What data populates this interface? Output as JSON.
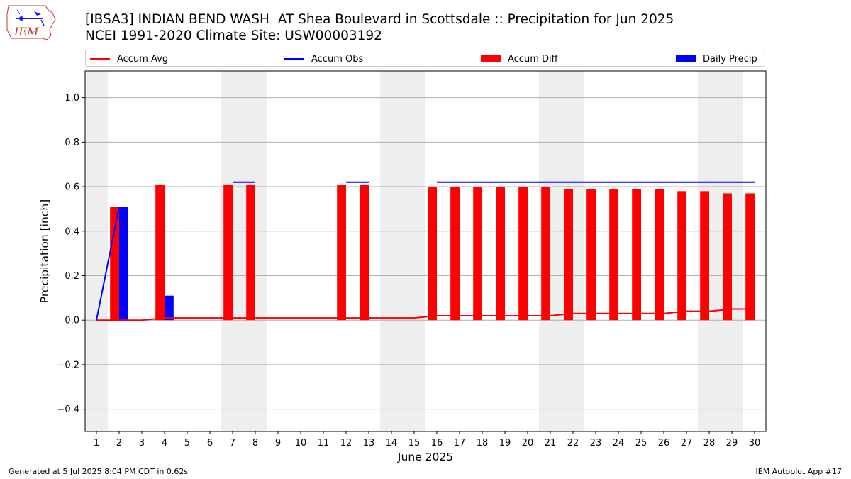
{
  "title_line1": "[IBSA3] INDIAN BEND WASH  AT Shea Boulevard in Scottsdale :: Precipitation for Jun 2025",
  "title_line2": "NCEI 1991-2020 Climate Site: USW00003192",
  "logo_text": "IEM",
  "footer_left": "Generated at 5 Jul 2025 8:04 PM CDT in 0.62s",
  "footer_right": "IEM Autoplot App #17",
  "colors": {
    "avg": "#ff0000",
    "obs": "#0000ff",
    "diff": "#ff0000",
    "daily": "#0000ff",
    "weekend": "#eeeeee",
    "grid": "#b0b0b0"
  },
  "chart_data": {
    "type": "bar",
    "xlabel": "June 2025",
    "ylabel": "Precipitation [inch]",
    "ylim": [
      -0.5,
      1.12
    ],
    "yticks": [
      -0.4,
      -0.2,
      0.0,
      0.2,
      0.4,
      0.6,
      0.8,
      1.0
    ],
    "ytick_labels": [
      "−0.4",
      "−0.2",
      "0.0",
      "0.2",
      "0.4",
      "0.6",
      "0.8",
      "1.0"
    ],
    "grid": "horizontal",
    "legend_placement": "top",
    "days": [
      1,
      2,
      3,
      4,
      5,
      6,
      7,
      8,
      9,
      10,
      11,
      12,
      13,
      14,
      15,
      16,
      17,
      18,
      19,
      20,
      21,
      22,
      23,
      24,
      25,
      26,
      27,
      28,
      29,
      30
    ],
    "weekend_days": [
      1,
      7,
      8,
      14,
      15,
      21,
      22,
      28,
      29
    ],
    "series": [
      {
        "name": "Accum Avg",
        "kind": "line",
        "values": [
          0.0,
          0.0,
          0.0,
          0.01,
          0.01,
          0.01,
          0.01,
          0.01,
          0.01,
          0.01,
          0.01,
          0.01,
          0.01,
          0.01,
          0.01,
          0.02,
          0.02,
          0.02,
          0.02,
          0.02,
          0.02,
          0.03,
          0.03,
          0.03,
          0.03,
          0.03,
          0.04,
          0.04,
          0.05,
          0.05
        ]
      },
      {
        "name": "Accum Obs",
        "kind": "line",
        "values": [
          0.0,
          0.51,
          null,
          null,
          null,
          null,
          0.62,
          0.62,
          null,
          null,
          null,
          0.62,
          0.62,
          null,
          null,
          0.62,
          0.62,
          0.62,
          0.62,
          0.62,
          0.62,
          0.62,
          0.62,
          0.62,
          0.62,
          0.62,
          0.62,
          0.62,
          0.62,
          0.62
        ]
      },
      {
        "name": "Accum Diff",
        "kind": "bar",
        "values": [
          null,
          0.51,
          null,
          0.61,
          null,
          null,
          0.61,
          0.61,
          null,
          null,
          null,
          0.61,
          0.61,
          null,
          null,
          0.6,
          0.6,
          0.6,
          0.6,
          0.6,
          0.6,
          0.59,
          0.59,
          0.59,
          0.59,
          0.59,
          0.58,
          0.58,
          0.57,
          0.57
        ]
      },
      {
        "name": "Daily Precip",
        "kind": "bar",
        "values": [
          0,
          0.51,
          0,
          0.11,
          0,
          0,
          0,
          0,
          0,
          0,
          0,
          0,
          0,
          0,
          0,
          0,
          0,
          0,
          0,
          0,
          0,
          0,
          0,
          0,
          0,
          0,
          0,
          0,
          0,
          0
        ]
      }
    ]
  }
}
